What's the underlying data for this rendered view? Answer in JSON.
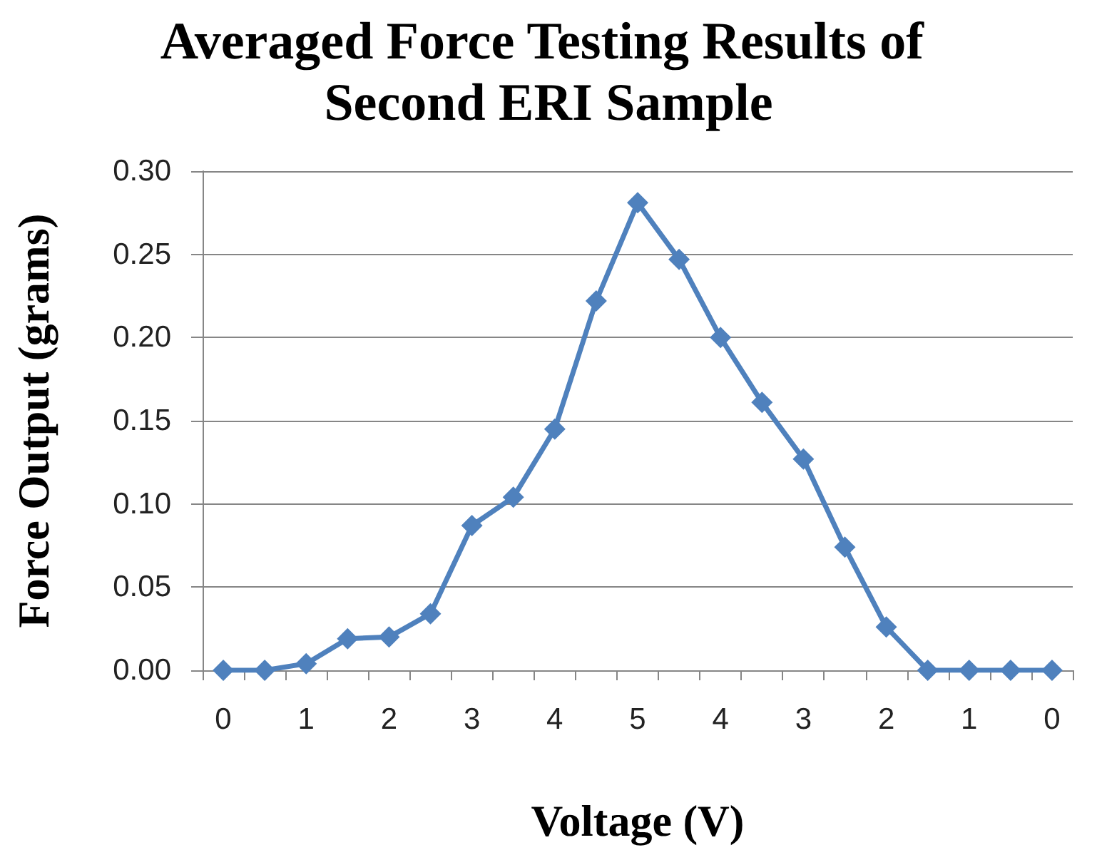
{
  "chart_data": {
    "type": "line",
    "title": "Averaged Force Testing Results of Second ERI Sample",
    "xlabel": "Voltage (V)",
    "ylabel": "Force Output (grams)",
    "categories": [
      "0",
      null,
      "1",
      null,
      "2",
      null,
      "3",
      null,
      "4",
      null,
      "5",
      null,
      "4",
      null,
      "3",
      null,
      "2",
      null,
      "1",
      null,
      "0"
    ],
    "series": [
      {
        "color": "#4f81bd",
        "values": [
          0,
          0,
          0.004,
          0.019,
          0.02,
          0.034,
          0.087,
          0.104,
          0.145,
          0.222,
          0.281,
          0.247,
          0.2,
          0.161,
          0.127,
          0.074,
          0.026,
          0,
          0,
          0,
          0
        ]
      }
    ],
    "ylim": [
      0,
      0.3
    ],
    "yticks": [
      {
        "value": 0,
        "label": "0.00"
      },
      {
        "value": 0.05,
        "label": "0.05"
      },
      {
        "value": 0.1,
        "label": "0.10"
      },
      {
        "value": 0.15,
        "label": "0.15"
      },
      {
        "value": 0.2,
        "label": "0.20"
      },
      {
        "value": 0.25,
        "label": "0.25"
      },
      {
        "value": 0.3,
        "label": "0.30"
      }
    ],
    "grid": "y",
    "marker": "diamond",
    "line_style": "solid"
  }
}
